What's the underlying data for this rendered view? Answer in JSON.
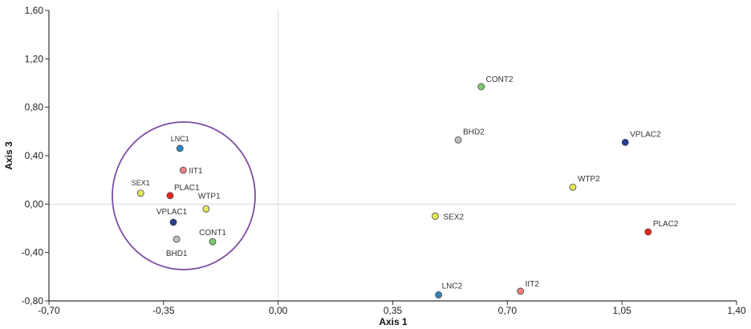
{
  "chart_data": {
    "type": "scatter",
    "xlabel": "Axis 1",
    "ylabel": "Axis 3",
    "xlim": [
      -0.7,
      1.4
    ],
    "ylim": [
      -0.8,
      1.6
    ],
    "xticks": [
      "-0,70",
      "-0,35",
      "0,00",
      "0,35",
      "0,70",
      "1,05",
      "1,40"
    ],
    "yticks": [
      "-0,80",
      "-0,40",
      "0,00",
      "0,40",
      "0,80",
      "1,20",
      "1,60"
    ],
    "grid": false,
    "zero_lines": true,
    "points": [
      {
        "label": "LNC1",
        "x": -0.3,
        "y": 0.46,
        "color": "#2e86c1"
      },
      {
        "label": "IIT1",
        "x": -0.29,
        "y": 0.28,
        "color": "#f08080"
      },
      {
        "label": "SEX1",
        "x": -0.42,
        "y": 0.09,
        "color": "#e6e65c"
      },
      {
        "label": "PLAC1",
        "x": -0.33,
        "y": 0.07,
        "color": "#e8261e"
      },
      {
        "label": "WTP1",
        "x": -0.22,
        "y": -0.04,
        "color": "#e6e65c"
      },
      {
        "label": "VPLAC1",
        "x": -0.32,
        "y": -0.15,
        "color": "#2a3f8f"
      },
      {
        "label": "BHD1",
        "x": -0.31,
        "y": -0.29,
        "color": "#bdbdbd"
      },
      {
        "label": "CONT1",
        "x": -0.2,
        "y": -0.31,
        "color": "#7dcc6e"
      },
      {
        "label": "CONT2",
        "x": 0.62,
        "y": 0.97,
        "color": "#7dcc6e"
      },
      {
        "label": "BHD2",
        "x": 0.55,
        "y": 0.53,
        "color": "#bdbdbd"
      },
      {
        "label": "VPLAC2",
        "x": 1.06,
        "y": 0.51,
        "color": "#2a3f8f"
      },
      {
        "label": "WTP2",
        "x": 0.9,
        "y": 0.14,
        "color": "#e6e65c"
      },
      {
        "label": "SEX2",
        "x": 0.48,
        "y": -0.1,
        "color": "#e6e65c"
      },
      {
        "label": "PLAC2",
        "x": 1.13,
        "y": -0.23,
        "color": "#e8261e"
      },
      {
        "label": "IIT2",
        "x": 0.74,
        "y": -0.72,
        "color": "#f08080"
      },
      {
        "label": "LNC2",
        "x": 0.49,
        "y": -0.75,
        "color": "#2e86c1"
      }
    ],
    "annotation": {
      "shape": "ellipse",
      "color": "#7b4ea0",
      "encloses": [
        "LNC1",
        "IIT1",
        "SEX1",
        "PLAC1",
        "WTP1",
        "VPLAC1",
        "BHD1",
        "CONT1"
      ]
    }
  }
}
